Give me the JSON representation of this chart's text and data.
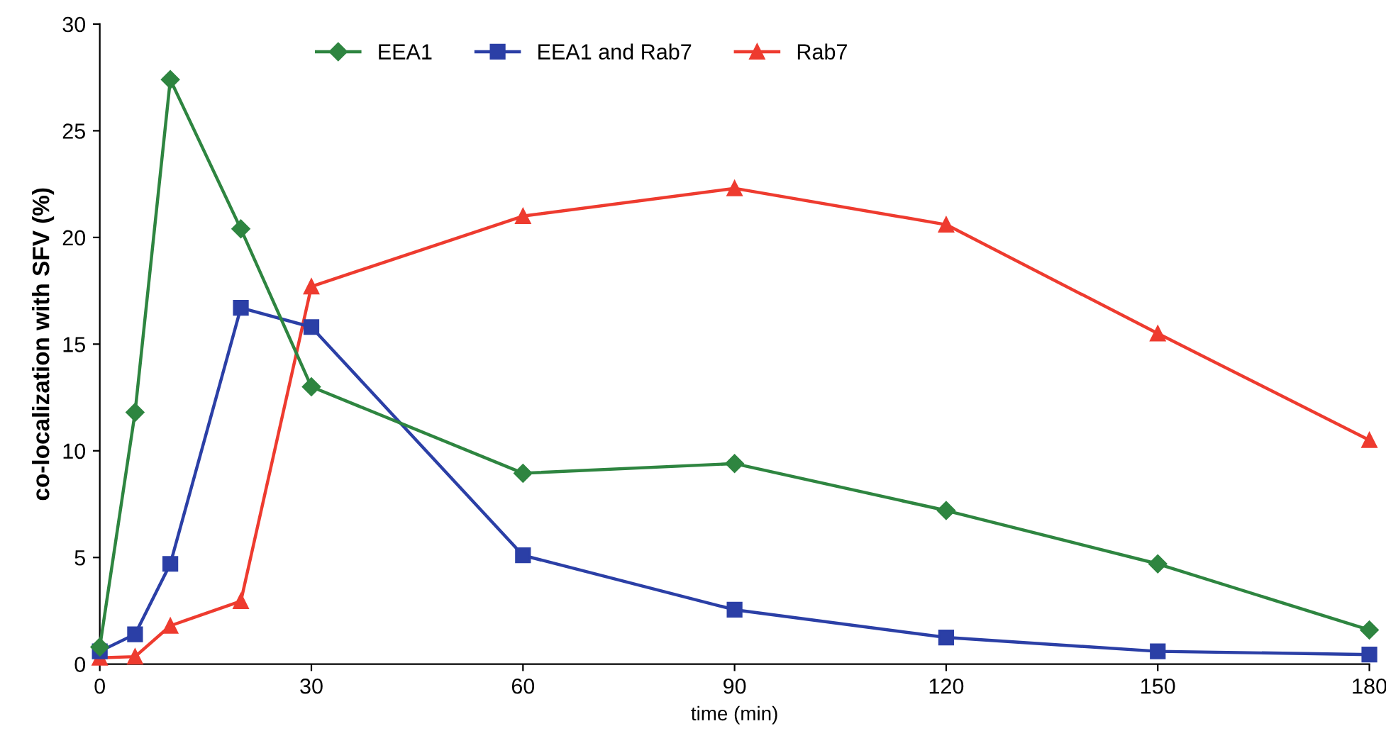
{
  "chart_data": {
    "type": "line",
    "xlabel": "time (min)",
    "ylabel": "co-localization with SFV (%)",
    "x": [
      0,
      5,
      10,
      20,
      30,
      60,
      90,
      120,
      150,
      180
    ],
    "series": [
      {
        "name": "EEA1",
        "color": "#2e8540",
        "marker": "diamond",
        "values": [
          0.8,
          11.8,
          27.4,
          20.4,
          13.0,
          8.95,
          9.4,
          7.2,
          4.7,
          1.6
        ]
      },
      {
        "name": "EEA1 and Rab7",
        "color": "#2b3fa6",
        "marker": "square",
        "values": [
          0.6,
          1.4,
          4.7,
          16.7,
          15.8,
          5.1,
          2.55,
          1.25,
          0.6,
          0.45
        ]
      },
      {
        "name": "Rab7",
        "color": "#ee3b2f",
        "marker": "triangle",
        "values": [
          0.3,
          0.35,
          1.8,
          2.95,
          17.7,
          21.0,
          22.3,
          20.6,
          15.5,
          10.5
        ]
      }
    ],
    "xlim": [
      0,
      180
    ],
    "xticks": [
      0,
      30,
      60,
      90,
      120,
      150,
      180
    ],
    "ylim": [
      0,
      30
    ],
    "yticks": [
      0,
      5,
      10,
      15,
      20,
      25,
      30
    ],
    "grid": false,
    "legend": "top"
  }
}
